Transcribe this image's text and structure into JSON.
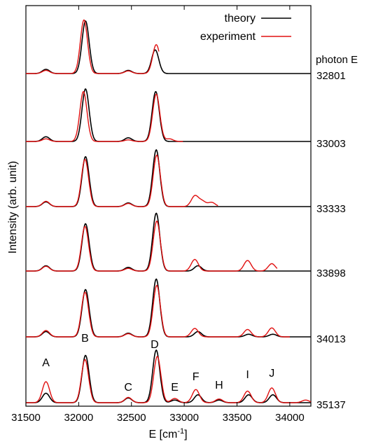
{
  "chart_data": {
    "type": "line",
    "xlabel": "E [cm",
    "xlabel_sup": "-1",
    "xlabel_end": "]",
    "ylabel": "Intensity (arb. unit)",
    "xlim": [
      31500,
      34200
    ],
    "x_ticks": [
      31500,
      32000,
      32500,
      33000,
      33500,
      34000
    ],
    "photon_header": "photon E",
    "legend": {
      "position": "top-right",
      "entries": [
        {
          "name": "theory",
          "color": "#000000"
        },
        {
          "name": "experiment",
          "color": "#e01010"
        }
      ]
    },
    "theory_color": "#000000",
    "experiment_color": "#e01010",
    "peaks": [
      {
        "label": "A",
        "x": 31690
      },
      {
        "label": "B",
        "x": 32060
      },
      {
        "label": "C",
        "x": 32470
      },
      {
        "label": "D",
        "x": 32720
      },
      {
        "label": "E",
        "x": 32910
      },
      {
        "label": "F",
        "x": 33110
      },
      {
        "label": "H",
        "x": 33330
      },
      {
        "label": "I",
        "x": 33600
      },
      {
        "label": "J",
        "x": 33830
      }
    ],
    "panels": [
      {
        "photon_E": "32801",
        "exp_end": 32760,
        "theory_peaks": [
          [
            31690,
            0.08
          ],
          [
            32065,
            1.0
          ],
          [
            32470,
            0.06
          ],
          [
            32725,
            0.45
          ]
        ],
        "exp_peaks": [
          [
            31690,
            0.06
          ],
          [
            32050,
            1.02
          ],
          [
            32470,
            0.05
          ],
          [
            32735,
            0.55
          ]
        ]
      },
      {
        "photon_E": "33003",
        "exp_end": 32990,
        "theory_peaks": [
          [
            31690,
            0.09
          ],
          [
            32065,
            1.0
          ],
          [
            32470,
            0.07
          ],
          [
            32730,
            0.95
          ]
        ],
        "exp_peaks": [
          [
            31690,
            0.05
          ],
          [
            32045,
            0.95
          ],
          [
            32470,
            0.03
          ],
          [
            32735,
            0.9
          ],
          [
            32860,
            0.05
          ]
        ]
      },
      {
        "photon_E": "33333",
        "exp_end": 33320,
        "theory_peaks": [
          [
            31690,
            0.09
          ],
          [
            32065,
            0.95
          ],
          [
            32470,
            0.07
          ],
          [
            32735,
            1.08
          ]
        ],
        "exp_peaks": [
          [
            31690,
            0.1
          ],
          [
            32060,
            0.9
          ],
          [
            32470,
            0.06
          ],
          [
            32740,
            0.98
          ],
          [
            33100,
            0.2
          ],
          [
            33170,
            0.1
          ],
          [
            33260,
            0.08
          ]
        ]
      },
      {
        "photon_E": "33898",
        "exp_end": 33880,
        "theory_peaks": [
          [
            31690,
            0.1
          ],
          [
            32065,
            0.9
          ],
          [
            32470,
            0.07
          ],
          [
            32735,
            1.1
          ],
          [
            33130,
            0.1
          ]
        ],
        "exp_peaks": [
          [
            31690,
            0.09
          ],
          [
            32060,
            0.85
          ],
          [
            32470,
            0.05
          ],
          [
            32740,
            0.95
          ],
          [
            33100,
            0.22
          ],
          [
            33600,
            0.2
          ],
          [
            33830,
            0.14
          ]
        ]
      },
      {
        "photon_E": "34013",
        "exp_end": 34000,
        "theory_peaks": [
          [
            31690,
            0.1
          ],
          [
            32065,
            0.9
          ],
          [
            32470,
            0.07
          ],
          [
            32735,
            1.1
          ],
          [
            33130,
            0.1
          ],
          [
            33610,
            0.05
          ],
          [
            33840,
            0.05
          ]
        ],
        "exp_peaks": [
          [
            31690,
            0.12
          ],
          [
            32060,
            0.85
          ],
          [
            32470,
            0.06
          ],
          [
            32740,
            0.98
          ],
          [
            33100,
            0.16
          ],
          [
            33600,
            0.14
          ],
          [
            33830,
            0.17
          ]
        ]
      },
      {
        "photon_E": "35137",
        "exp_end": 34200,
        "theory_peaks": [
          [
            31690,
            0.18
          ],
          [
            32065,
            0.9
          ],
          [
            32470,
            0.09
          ],
          [
            32735,
            1.0
          ],
          [
            32910,
            0.05
          ],
          [
            33130,
            0.15
          ],
          [
            33330,
            0.05
          ],
          [
            33610,
            0.15
          ],
          [
            33840,
            0.15
          ]
        ],
        "exp_peaks": [
          [
            31690,
            0.4
          ],
          [
            32060,
            0.82
          ],
          [
            32470,
            0.1
          ],
          [
            32745,
            0.88
          ],
          [
            32910,
            0.08
          ],
          [
            33110,
            0.25
          ],
          [
            33330,
            0.07
          ],
          [
            33600,
            0.22
          ],
          [
            33830,
            0.28
          ],
          [
            34150,
            0.05
          ]
        ]
      }
    ]
  }
}
